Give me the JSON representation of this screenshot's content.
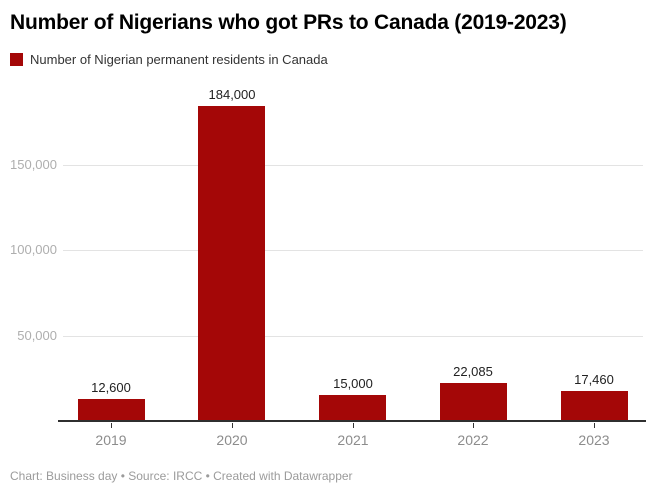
{
  "header": {
    "title": "Number of Nigerians who got PRs to Canada (2019-2023)"
  },
  "legend": {
    "label": "Number of Nigerian permanent residents in Canada",
    "swatch_color": "#a40707"
  },
  "footer": {
    "text": "Chart: Business day • Source: IRCC • Created with Datawrapper"
  },
  "chart_data": {
    "type": "bar",
    "title": "Number of Nigerians who got PRs to Canada (2019-2023)",
    "series_name": "Number of Nigerian permanent residents in Canada",
    "categories": [
      "2019",
      "2020",
      "2021",
      "2022",
      "2023"
    ],
    "values": [
      12600,
      184000,
      15000,
      22085,
      17460
    ],
    "value_labels": [
      "12,600",
      "184,000",
      "15,000",
      "22,085",
      "17,460"
    ],
    "y_ticks": [
      50000,
      100000,
      150000
    ],
    "y_tick_labels": [
      "50,000",
      "100,000",
      "150,000"
    ],
    "ylim": [
      0,
      195000
    ],
    "xlabel": "",
    "ylabel": "",
    "grid": "horizontal",
    "legend_position": "top-left",
    "bar_color": "#a40707",
    "axis_text_color": "#8c8c8c",
    "gridline_color": "#e3e3e3"
  }
}
